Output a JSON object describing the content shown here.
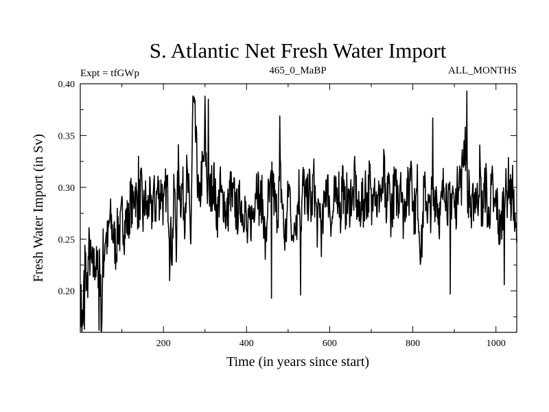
{
  "chart_data": {
    "type": "line",
    "title": "S. Atlantic Net Fresh Water Import",
    "subtitle_left": "Expt = tfGWp",
    "subtitle_center": "465_0_MaBP",
    "subtitle_right": "ALL_MONTHS",
    "xlabel": "Time (in years since start)",
    "ylabel": "Fresh Water Import (in Sv)",
    "xlim": [
      0,
      1050
    ],
    "ylim": [
      0.16,
      0.4
    ],
    "xticks": [
      200,
      400,
      600,
      800,
      1000
    ],
    "xtick_labels": [
      "200",
      "400",
      "600",
      "800",
      "1000"
    ],
    "yticks": [
      0.2,
      0.25,
      0.3,
      0.35,
      0.4
    ],
    "ytick_labels": [
      "0.20",
      "0.25",
      "0.30",
      "0.35",
      "0.40"
    ],
    "series": [
      {
        "name": "Fresh Water Import",
        "color": "#000000",
        "x_start": 1,
        "x_step": 5,
        "values": [
          0.19,
          0.165,
          0.235,
          0.2,
          0.24,
          0.225,
          0.22,
          0.23,
          0.215,
          0.24,
          0.165,
          0.23,
          0.255,
          0.245,
          0.27,
          0.262,
          0.25,
          0.24,
          0.265,
          0.255,
          0.275,
          0.26,
          0.27,
          0.265,
          0.29,
          0.278,
          0.3,
          0.285,
          0.28,
          0.3,
          0.27,
          0.29,
          0.275,
          0.29,
          0.27,
          0.295,
          0.28,
          0.3,
          0.29,
          0.3,
          0.275,
          0.3,
          0.29,
          0.255,
          0.24,
          0.3,
          0.25,
          0.32,
          0.29,
          0.3,
          0.275,
          0.31,
          0.29,
          0.25,
          0.38,
          0.36,
          0.32,
          0.275,
          0.31,
          0.32,
          0.34,
          0.3,
          0.29,
          0.3,
          0.31,
          0.28,
          0.275,
          0.3,
          0.285,
          0.29,
          0.27,
          0.28,
          0.3,
          0.285,
          0.29,
          0.275,
          0.28,
          0.29,
          0.275,
          0.285,
          0.25,
          0.26,
          0.27,
          0.275,
          0.3,
          0.31,
          0.28,
          0.29,
          0.275,
          0.235,
          0.29,
          0.285,
          0.315,
          0.29,
          0.275,
          0.285,
          0.31,
          0.285,
          0.25,
          0.26,
          0.3,
          0.29,
          0.235,
          0.28,
          0.27,
          0.3,
          0.265,
          0.305,
          0.29,
          0.285,
          0.3,
          0.275,
          0.31,
          0.285,
          0.26,
          0.285,
          0.25,
          0.275,
          0.31,
          0.295,
          0.28,
          0.265,
          0.29,
          0.285,
          0.305,
          0.27,
          0.315,
          0.275,
          0.29,
          0.28,
          0.295,
          0.285,
          0.31,
          0.28,
          0.27,
          0.29,
          0.28,
          0.3,
          0.285,
          0.31,
          0.275,
          0.32,
          0.29,
          0.28,
          0.3,
          0.285,
          0.32,
          0.255,
          0.315,
          0.275,
          0.285,
          0.3,
          0.295,
          0.29,
          0.32,
          0.27,
          0.285,
          0.3,
          0.29,
          0.335,
          0.28,
          0.275,
          0.3,
          0.255,
          0.24,
          0.29,
          0.295,
          0.28,
          0.275,
          0.29,
          0.285,
          0.3,
          0.28,
          0.27,
          0.29,
          0.31,
          0.295,
          0.28,
          0.285,
          0.3,
          0.275,
          0.29,
          0.32,
          0.3,
          0.33,
          0.35,
          0.285,
          0.3,
          0.265,
          0.29,
          0.295,
          0.285,
          0.32,
          0.275,
          0.29,
          0.305,
          0.265,
          0.285,
          0.3,
          0.275,
          0.29,
          0.265,
          0.255,
          0.28,
          0.3,
          0.29,
          0.31,
          0.285,
          0.3,
          0.255
        ]
      }
    ],
    "features": [
      {
        "x": 10,
        "y": 0.163
      },
      {
        "x": 45,
        "y": 0.162
      },
      {
        "x": 55,
        "y": 0.26
      },
      {
        "x": 140,
        "y": 0.33
      },
      {
        "x": 215,
        "y": 0.21
      },
      {
        "x": 300,
        "y": 0.388
      },
      {
        "x": 308,
        "y": 0.385
      },
      {
        "x": 460,
        "y": 0.193
      },
      {
        "x": 480,
        "y": 0.369
      },
      {
        "x": 530,
        "y": 0.196
      },
      {
        "x": 848,
        "y": 0.367
      },
      {
        "x": 890,
        "y": 0.197
      },
      {
        "x": 930,
        "y": 0.393
      },
      {
        "x": 1020,
        "y": 0.206
      }
    ]
  }
}
